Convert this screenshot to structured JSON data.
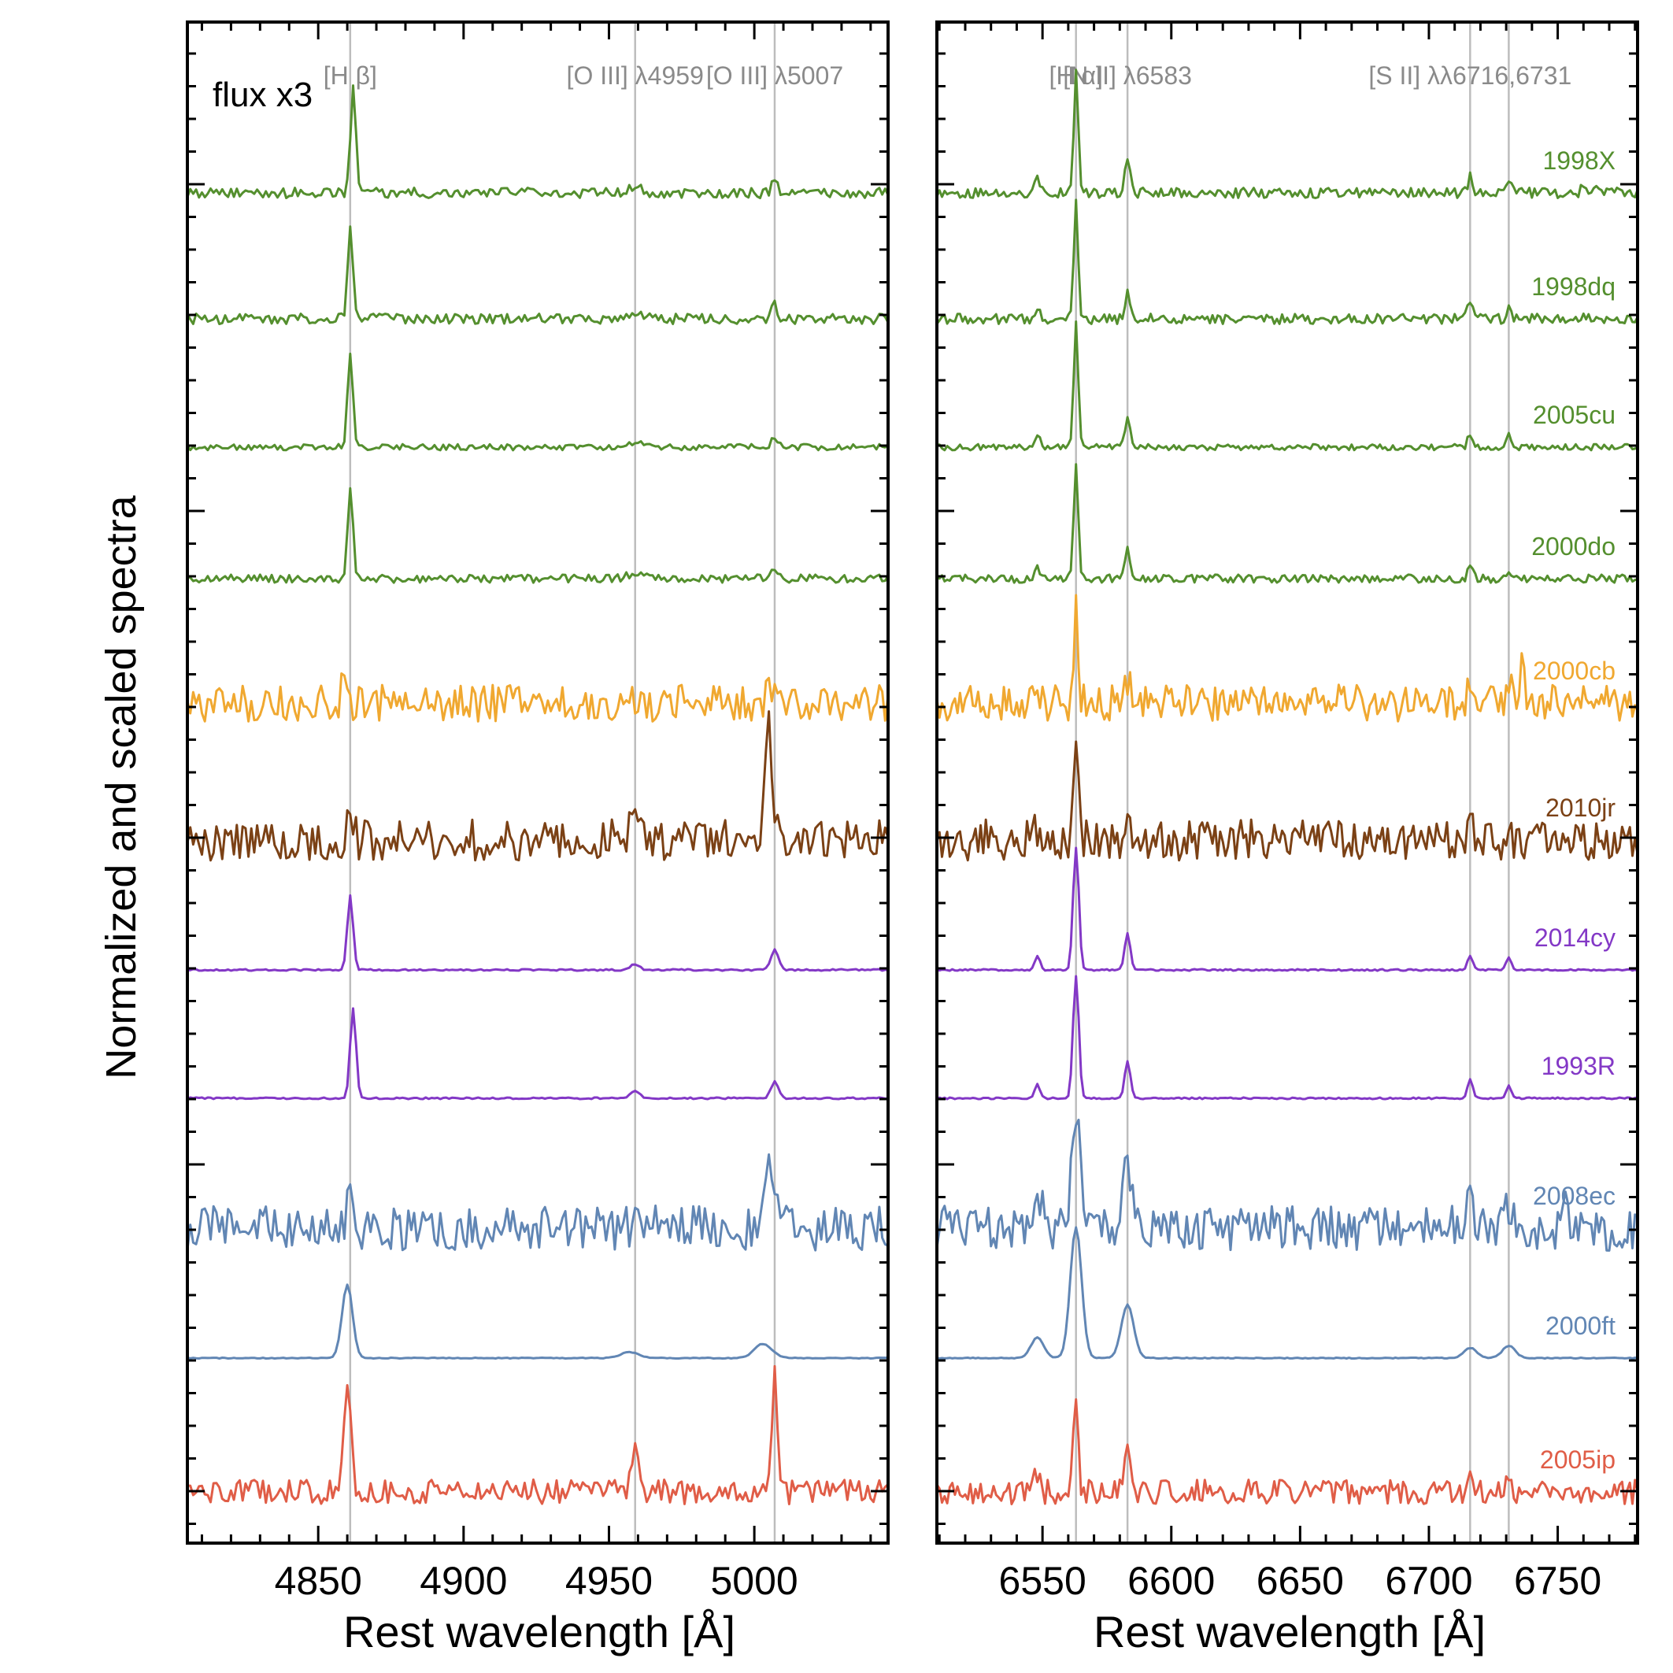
{
  "chart_data": {
    "type": "line",
    "ylabel": "Normalized and scaled spectra",
    "annotation": "flux x3",
    "panels": [
      {
        "xlabel": "Rest wavelength [Å]",
        "xlim": [
          4805,
          5046
        ],
        "ticks": [
          4850,
          4900,
          4950,
          5000
        ],
        "tick_labels": [
          "4850",
          "4900",
          "4950",
          "5000"
        ],
        "lines": [
          {
            "x": 4861,
            "label": "[H β]"
          },
          {
            "x": 4959,
            "label": "[O III] λ4959"
          },
          {
            "x": 5007,
            "label": "[O III] λ5007"
          }
        ]
      },
      {
        "xlabel": "Rest wavelength [Å]",
        "xlim": [
          6509,
          6781
        ],
        "ticks": [
          6550,
          6600,
          6650,
          6700,
          6750
        ],
        "tick_labels": [
          "6550",
          "6600",
          "6650",
          "6700",
          "6750"
        ],
        "lines": [
          {
            "x": 6563,
            "label": "[H α]"
          },
          {
            "x": 6583,
            "label": "[N II] λ6583"
          },
          {
            "x": 6716,
            "label": "[S II] λλ6716,6731"
          },
          {
            "x": 6731,
            "label": ""
          }
        ]
      }
    ],
    "series": [
      {
        "name": "1998X",
        "color": "#548f2e",
        "base": 0.0,
        "noise": 0.25,
        "left": [
          [
            4862,
            2.6,
            0.9
          ],
          [
            4959,
            0.12,
            2.5
          ],
          [
            5007,
            0.3,
            1.0
          ]
        ],
        "right": [
          [
            6548,
            0.3,
            1.0
          ],
          [
            6563,
            2.9,
            0.85
          ],
          [
            6583,
            0.85,
            1.0
          ],
          [
            6716,
            0.4,
            0.9
          ],
          [
            6731,
            0.3,
            0.9
          ],
          [
            6760,
            0.2,
            0.8
          ],
          [
            6765,
            0.2,
            0.8
          ]
        ]
      },
      {
        "name": "1998dq",
        "color": "#548f2e",
        "base": 0.0,
        "noise": 0.25,
        "left": [
          [
            4861,
            2.2,
            0.9
          ],
          [
            4959,
            0.1,
            2.5
          ],
          [
            5007,
            0.35,
            1.0
          ]
        ],
        "right": [
          [
            6548,
            0.3,
            1.0
          ],
          [
            6563,
            2.8,
            0.85
          ],
          [
            6583,
            0.7,
            1.0
          ],
          [
            6716,
            0.4,
            0.9
          ],
          [
            6731,
            0.3,
            0.9
          ],
          [
            6760,
            0.2,
            0.8
          ]
        ]
      },
      {
        "name": "2005cu",
        "color": "#548f2e",
        "base": 0.0,
        "noise": 0.15,
        "left": [
          [
            4861,
            2.3,
            0.9
          ],
          [
            4959,
            0.12,
            2.5
          ],
          [
            5007,
            0.25,
            1.0
          ]
        ],
        "right": [
          [
            6548,
            0.3,
            1.0
          ],
          [
            6563,
            3.0,
            0.85
          ],
          [
            6583,
            0.7,
            1.0
          ],
          [
            6716,
            0.35,
            0.9
          ],
          [
            6731,
            0.3,
            0.9
          ]
        ]
      },
      {
        "name": "2000do",
        "color": "#548f2e",
        "base": 0.0,
        "noise": 0.2,
        "left": [
          [
            4861,
            2.3,
            0.9
          ],
          [
            4959,
            0.12,
            2.5
          ],
          [
            5007,
            0.2,
            1.0
          ]
        ],
        "right": [
          [
            6548,
            0.3,
            1.0
          ],
          [
            6563,
            2.7,
            0.85
          ],
          [
            6583,
            0.7,
            1.0
          ],
          [
            6716,
            0.3,
            0.9
          ],
          [
            6731,
            0.25,
            0.9
          ]
        ]
      },
      {
        "name": "2000cb",
        "color": "#f0a830",
        "base": 0.0,
        "noise": 0.9,
        "left": [
          [
            4859,
            1.0,
            0.8
          ],
          [
            5005,
            0.8,
            1.0
          ]
        ],
        "right": [
          [
            6563,
            2.2,
            0.85
          ],
          [
            6583,
            0.6,
            1.0
          ],
          [
            6716,
            0.6,
            0.9
          ],
          [
            6731,
            0.5,
            0.9
          ],
          [
            6736,
            1.0,
            0.8
          ]
        ]
      },
      {
        "name": "2010jr",
        "color": "#7b4115",
        "base": 0.0,
        "noise": 1.0,
        "left": [
          [
            4861,
            0.8,
            1.0
          ],
          [
            4959,
            1.1,
            1.2
          ],
          [
            5005,
            2.8,
            1.2
          ]
        ],
        "right": [
          [
            6548,
            0.3,
            1.0
          ],
          [
            6563,
            2.9,
            0.85
          ],
          [
            6583,
            0.9,
            1.0
          ],
          [
            6716,
            0.4,
            0.9
          ],
          [
            6731,
            0.3,
            0.9
          ]
        ]
      },
      {
        "name": "2014cy",
        "color": "#8338c6",
        "base": 0.0,
        "noise": 0.04,
        "left": [
          [
            4861,
            1.8,
            1.0
          ],
          [
            4959,
            0.15,
            1.5
          ],
          [
            5007,
            0.5,
            1.3
          ]
        ],
        "right": [
          [
            6548,
            0.35,
            1.0
          ],
          [
            6563,
            3.0,
            1.1
          ],
          [
            6583,
            0.9,
            1.1
          ],
          [
            6716,
            0.35,
            1.0
          ],
          [
            6731,
            0.3,
            1.0
          ]
        ]
      },
      {
        "name": "1993R",
        "color": "#8338c6",
        "base": 0.0,
        "noise": 0.04,
        "left": [
          [
            4862,
            2.2,
            1.0
          ],
          [
            4959,
            0.2,
            1.5
          ],
          [
            5007,
            0.4,
            1.3
          ]
        ],
        "right": [
          [
            6548,
            0.35,
            1.0
          ],
          [
            6563,
            3.0,
            1.1
          ],
          [
            6583,
            0.9,
            1.1
          ],
          [
            6716,
            0.45,
            1.0
          ],
          [
            6731,
            0.3,
            1.0
          ]
        ]
      },
      {
        "name": "2008ec",
        "color": "#6186b4",
        "base": 0.0,
        "noise": 1.1,
        "left": [
          [
            4861,
            1.3,
            0.8
          ],
          [
            5005,
            1.8,
            2.0
          ]
        ],
        "right": [
          [
            6548,
            0.6,
            2.0
          ],
          [
            6563,
            3.0,
            1.6
          ],
          [
            6583,
            1.5,
            1.6
          ],
          [
            6716,
            1.1,
            1.3
          ],
          [
            6731,
            0.6,
            2.0
          ],
          [
            6752,
            0.9,
            0.8
          ]
        ]
      },
      {
        "name": "2000ft",
        "color": "#6186b4",
        "base": 0.0,
        "noise": 0.02,
        "left": [
          [
            4860,
            1.8,
            1.8
          ],
          [
            4957,
            0.15,
            3.0
          ],
          [
            5003,
            0.35,
            3.0
          ]
        ],
        "right": [
          [
            6548,
            0.5,
            2.5
          ],
          [
            6563,
            3.2,
            2.2
          ],
          [
            6583,
            1.3,
            2.4
          ],
          [
            6716,
            0.25,
            2.5
          ],
          [
            6731,
            0.3,
            2.5
          ]
        ]
      },
      {
        "name": "2005ip",
        "color": "#e05d47",
        "base": 0.0,
        "noise": 0.6,
        "left": [
          [
            4860,
            2.6,
            1.3
          ],
          [
            4959,
            1.0,
            1.2
          ],
          [
            5007,
            2.8,
            1.0
          ]
        ],
        "right": [
          [
            6548,
            0.45,
            1.0
          ],
          [
            6563,
            2.5,
            0.9
          ],
          [
            6583,
            1.4,
            1.0
          ],
          [
            6716,
            0.45,
            1.0
          ],
          [
            6731,
            0.3,
            1.0
          ]
        ]
      }
    ]
  }
}
